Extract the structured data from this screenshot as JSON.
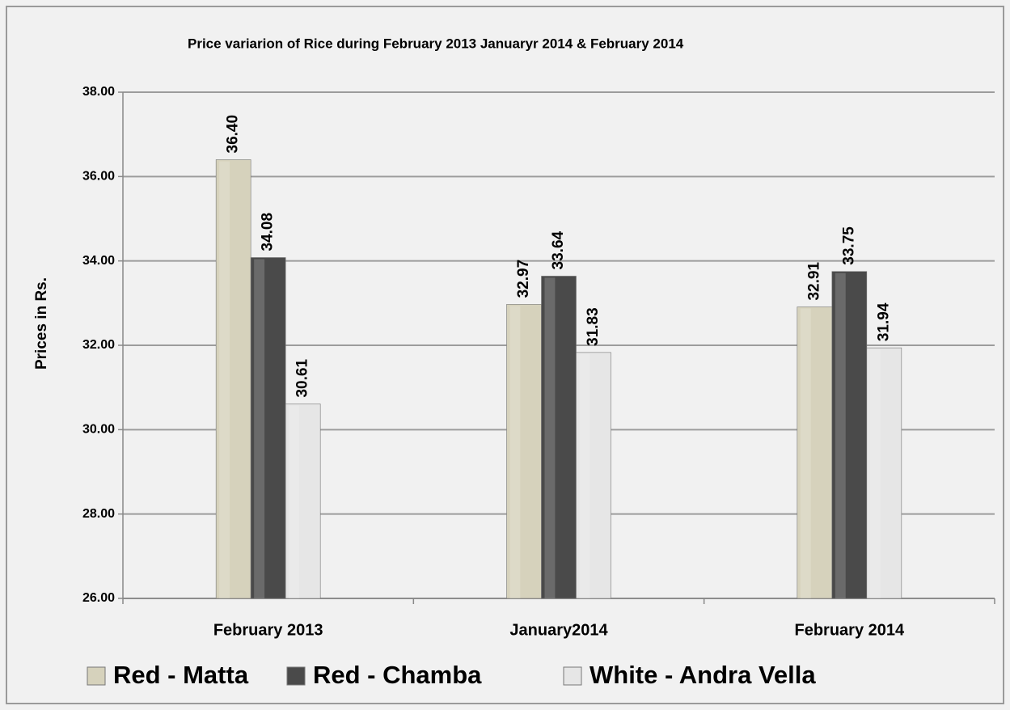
{
  "chart_data": {
    "type": "bar",
    "title": "Price variarion of Rice during February 2013 Januaryr 2014 & February 2014",
    "y_label": "Prices in Rs.",
    "categories": [
      "February 2013",
      "January2014",
      "February 2014"
    ],
    "series": [
      {
        "name": "Red - Matta",
        "color": "#d6d2bc",
        "values": [
          36.4,
          32.97,
          32.91
        ],
        "value_labels": [
          "36.40",
          "32.97",
          "32.91"
        ]
      },
      {
        "name": "Red - Chamba",
        "color": "#4a4a4a",
        "values": [
          34.08,
          33.64,
          33.75
        ],
        "value_labels": [
          "34.08",
          "33.64",
          "33.75"
        ]
      },
      {
        "name": "White - Andra Vella",
        "color": "#e6e6e6",
        "values": [
          30.61,
          31.83,
          31.94
        ],
        "value_labels": [
          "30.61",
          "31.83",
          "31.94"
        ]
      }
    ],
    "ylim": [
      26,
      38
    ],
    "yticks": [
      {
        "value": 26,
        "label": "26.00"
      },
      {
        "value": 28,
        "label": "28.00"
      },
      {
        "value": 30,
        "label": "30.00"
      },
      {
        "value": 32,
        "label": "32.00"
      },
      {
        "value": 34,
        "label": "34.00"
      },
      {
        "value": 36,
        "label": "36.00"
      },
      {
        "value": 38,
        "label": "38.00"
      }
    ],
    "grid": true,
    "legend": "bottom"
  }
}
